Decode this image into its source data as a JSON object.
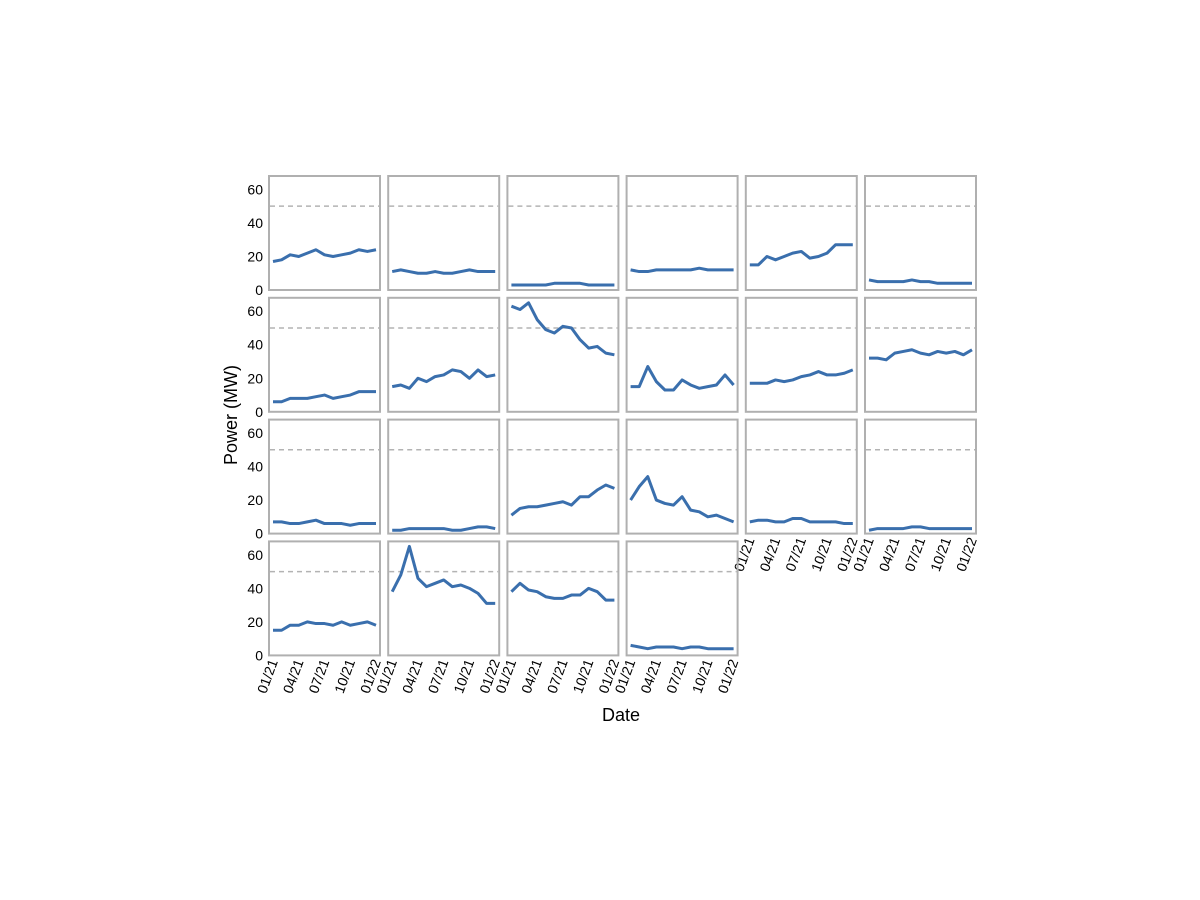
{
  "chart_data": {
    "type": "line",
    "xlabel": "Date",
    "ylabel": "Power (MW)",
    "x": [
      "01/21",
      "02/21",
      "03/21",
      "04/21",
      "05/21",
      "06/21",
      "07/21",
      "08/21",
      "09/21",
      "10/21",
      "11/21",
      "12/21",
      "01/22"
    ],
    "xticks": [
      "01/21",
      "04/21",
      "07/21",
      "10/21",
      "01/22"
    ],
    "ylim": [
      0,
      68
    ],
    "yticks": [
      0,
      20,
      40,
      60
    ],
    "reference_line": 50,
    "color": "#3a6fad",
    "reference_color": "#b3b3b3",
    "columns": 6,
    "panels": [
      {
        "values": [
          17,
          18,
          21,
          20,
          22,
          24,
          21,
          20,
          21,
          22,
          24,
          23,
          24
        ]
      },
      {
        "values": [
          11,
          12,
          11,
          10,
          10,
          11,
          10,
          10,
          11,
          12,
          11,
          11,
          11
        ]
      },
      {
        "values": [
          3,
          3,
          3,
          3,
          3,
          4,
          4,
          4,
          4,
          3,
          3,
          3,
          3
        ]
      },
      {
        "values": [
          12,
          11,
          11,
          12,
          12,
          12,
          12,
          12,
          13,
          12,
          12,
          12,
          12
        ]
      },
      {
        "values": [
          15,
          15,
          20,
          18,
          20,
          22,
          23,
          19,
          20,
          22,
          27,
          27,
          27
        ]
      },
      {
        "values": [
          6,
          5,
          5,
          5,
          5,
          6,
          5,
          5,
          4,
          4,
          4,
          4,
          4
        ]
      },
      {
        "values": [
          6,
          6,
          8,
          8,
          8,
          9,
          10,
          8,
          9,
          10,
          12,
          12,
          12
        ]
      },
      {
        "values": [
          15,
          16,
          14,
          20,
          18,
          21,
          22,
          25,
          24,
          20,
          25,
          21,
          22
        ]
      },
      {
        "values": [
          63,
          61,
          65,
          55,
          49,
          47,
          51,
          50,
          43,
          38,
          39,
          35,
          34
        ]
      },
      {
        "values": [
          15,
          15,
          27,
          18,
          13,
          13,
          19,
          16,
          14,
          15,
          16,
          22,
          16
        ]
      },
      {
        "values": [
          17,
          17,
          17,
          19,
          18,
          19,
          21,
          22,
          24,
          22,
          22,
          23,
          25
        ]
      },
      {
        "values": [
          32,
          32,
          31,
          35,
          36,
          37,
          35,
          34,
          36,
          35,
          36,
          34,
          37
        ]
      },
      {
        "values": [
          7,
          7,
          6,
          6,
          7,
          8,
          6,
          6,
          6,
          5,
          6,
          6,
          6
        ]
      },
      {
        "values": [
          2,
          2,
          3,
          3,
          3,
          3,
          3,
          2,
          2,
          3,
          4,
          4,
          3
        ]
      },
      {
        "values": [
          11,
          15,
          16,
          16,
          17,
          18,
          19,
          17,
          22,
          22,
          26,
          29,
          27
        ]
      },
      {
        "values": [
          20,
          28,
          34,
          20,
          18,
          17,
          22,
          14,
          13,
          10,
          11,
          9,
          7
        ]
      },
      {
        "values": [
          7,
          8,
          8,
          7,
          7,
          9,
          9,
          7,
          7,
          7,
          7,
          6,
          6
        ]
      },
      {
        "values": [
          2,
          3,
          3,
          3,
          3,
          4,
          4,
          3,
          3,
          3,
          3,
          3,
          3
        ]
      },
      {
        "values": [
          15,
          15,
          18,
          18,
          20,
          19,
          19,
          18,
          20,
          18,
          19,
          20,
          18
        ]
      },
      {
        "values": [
          38,
          48,
          65,
          46,
          41,
          43,
          45,
          41,
          42,
          40,
          37,
          31,
          31
        ]
      },
      {
        "values": [
          38,
          43,
          39,
          38,
          35,
          34,
          34,
          36,
          36,
          40,
          38,
          33,
          33
        ]
      },
      {
        "values": [
          6,
          5,
          4,
          5,
          5,
          5,
          4,
          5,
          5,
          4,
          4,
          4,
          4
        ]
      }
    ]
  }
}
